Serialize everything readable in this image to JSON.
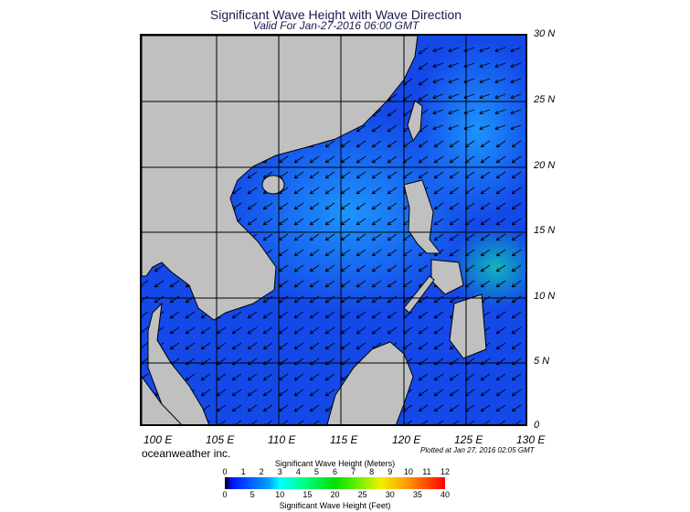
{
  "title": "Significant Wave Height with Wave Direction",
  "subtitle": "Valid For Jan-27-2016 06:00 GMT",
  "lat_labels": [
    "30 N",
    "25 N",
    "20 N",
    "15 N",
    "10 N",
    "5 N",
    "0"
  ],
  "lon_labels": [
    "100 E",
    "105 E",
    "110 E",
    "115 E",
    "120 E",
    "125 E",
    "130 E"
  ],
  "brand": "oceanweather inc.",
  "plotted": "Plotted at Jan 27, 2016 02:05 GMT",
  "colorbar": {
    "title_meters": "Significant Wave Height (Meters)",
    "title_feet": "Significant Wave Height (Feet)",
    "meters": [
      "0",
      "1",
      "2",
      "3",
      "4",
      "5",
      "6",
      "7",
      "8",
      "9",
      "10",
      "11",
      "12"
    ],
    "feet": [
      "0",
      "5",
      "10",
      "15",
      "20",
      "25",
      "30",
      "35",
      "40"
    ]
  },
  "colors": {
    "land": "#c0c0c0",
    "sea": "#1448e8",
    "sea_light": "#1e90ff",
    "arrow": "#000000"
  }
}
